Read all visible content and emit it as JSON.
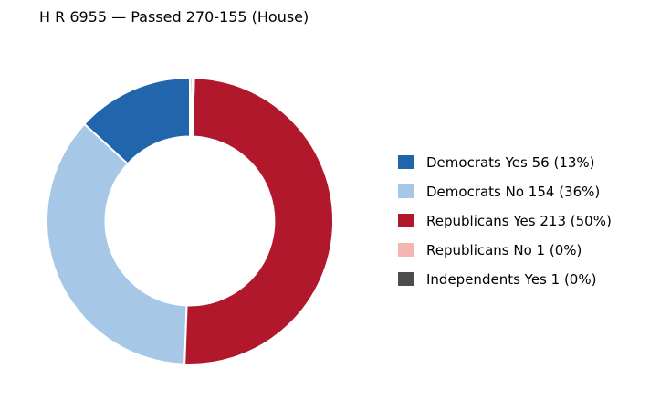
{
  "chart_data": {
    "type": "pie",
    "donut": true,
    "title": "H R 6955 — Passed 270-155 (House)",
    "legend_position": "right",
    "slice_order": "counterclockwise from top",
    "slices": [
      {
        "label": "Democrats Yes",
        "value": 56,
        "percent_label": "(13%)",
        "color": "#2166ac"
      },
      {
        "label": "Democrats No",
        "value": 154,
        "percent_label": "(36%)",
        "color": "#a6c8e6"
      },
      {
        "label": "Republicans Yes",
        "value": 213,
        "percent_label": "(50%)",
        "color": "#b2182b"
      },
      {
        "label": "Republicans No",
        "value": 1,
        "percent_label": "(0%)",
        "color": "#f4b6b0"
      },
      {
        "label": "Independents Yes",
        "value": 1,
        "percent_label": "(0%)",
        "color": "#4d4d4d"
      }
    ]
  }
}
